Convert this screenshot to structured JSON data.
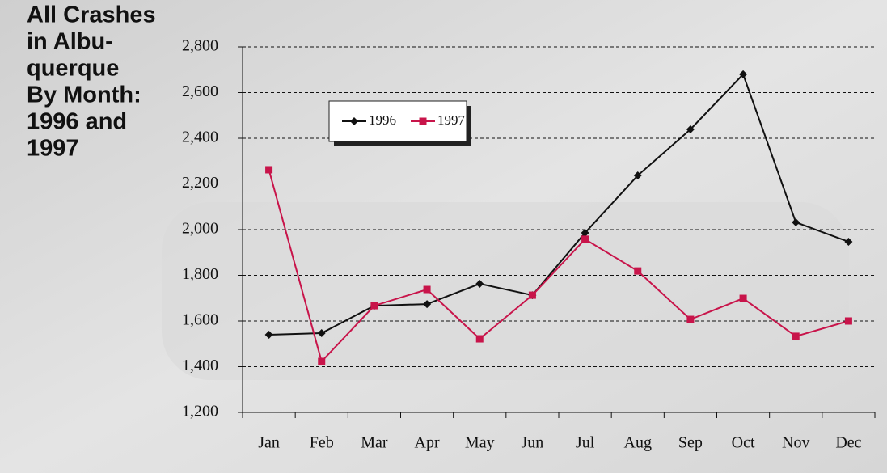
{
  "chart_data": {
    "type": "line",
    "title": [
      "All Crashes",
      "in Albu-",
      "querque",
      "By Month:",
      "1996 and",
      "1997"
    ],
    "categories": [
      "Jan",
      "Feb",
      "Mar",
      "Apr",
      "May",
      "Jun",
      "Jul",
      "Aug",
      "Sep",
      "Oct",
      "Nov",
      "Dec"
    ],
    "series": [
      {
        "name": "1996",
        "color": "#111111",
        "marker": "diamond",
        "values": [
          1540,
          1547,
          1667,
          1674,
          1763,
          1713,
          1986,
          2237,
          2439,
          2680,
          2032,
          1947
        ]
      },
      {
        "name": "1997",
        "color": "#c8144a",
        "marker": "square",
        "values": [
          2262,
          1423,
          1667,
          1738,
          1522,
          1713,
          1958,
          1819,
          1607,
          1699,
          1533,
          1600
        ]
      }
    ],
    "ylim": [
      1200,
      2800
    ],
    "yticks": [
      {
        "value": 1200,
        "label": "1,200"
      },
      {
        "value": 1400,
        "label": "1,400"
      },
      {
        "value": 1600,
        "label": "1,600"
      },
      {
        "value": 1800,
        "label": "1,800"
      },
      {
        "value": 2000,
        "label": "2,000"
      },
      {
        "value": 2200,
        "label": "2,200"
      },
      {
        "value": 2400,
        "label": "2,400"
      },
      {
        "value": 2600,
        "label": "2,600"
      },
      {
        "value": 2800,
        "label": "2,800"
      }
    ],
    "grid": true,
    "legend": "top-left"
  }
}
